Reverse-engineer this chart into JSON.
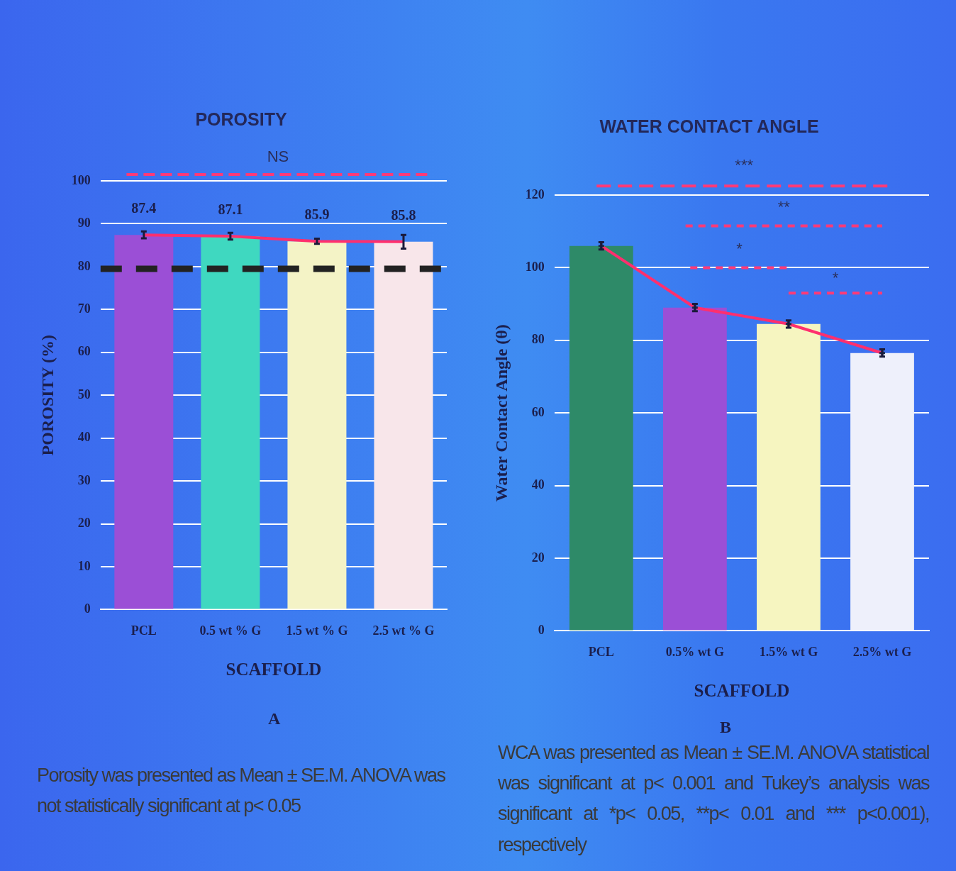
{
  "chart_data": [
    {
      "type": "bar",
      "title": "POROSITY",
      "xlabel": "SCAFFOLD",
      "ylabel": "POROSITY (%)",
      "categories": [
        "PCL",
        "0.5 wt % G",
        "1.5 wt % G",
        "2.5 wt % G"
      ],
      "series": [
        {
          "colors": [
            "#9b4fd6",
            "#3fd8c0",
            "#f4f3c6",
            "#f8e6ea"
          ],
          "values": [
            87.4,
            87.1,
            85.9,
            85.8
          ],
          "errors": [
            0.8,
            0.8,
            0.6,
            1.6
          ],
          "value_labels": [
            "87.4",
            "87.1",
            "85.9",
            "85.8"
          ]
        },
        {
          "type": "line",
          "color": "#ff2f6e",
          "values": [
            87.4,
            87.1,
            85.9,
            85.8
          ]
        }
      ],
      "ylim": [
        0,
        100
      ],
      "yticks": [
        0,
        10,
        20,
        30,
        40,
        50,
        60,
        70,
        80,
        90,
        100
      ],
      "grid": "y",
      "legend": false,
      "ref_lines": [
        {
          "axis": "y",
          "value": 79.5,
          "color": "#222222",
          "line_style": "dashed"
        }
      ],
      "annotations": [
        "NS",
        "A",
        "Porosity was presented as Mean ± SE.M. ANOVA was not statistically significant at p< 0.05"
      ]
    },
    {
      "type": "bar",
      "title": "WATER CONTACT ANGLE",
      "xlabel": "SCAFFOLD",
      "ylabel": "Water Contact Angle (θ)",
      "categories": [
        "PCL",
        "0.5% wt G",
        "1.5% wt G",
        "2.5% wt G"
      ],
      "series": [
        {
          "colors": [
            "#2e8a68",
            "#9b4fd6",
            "#f6f5c0",
            "#eef0fb"
          ],
          "values": [
            106,
            89,
            84.5,
            76.5
          ],
          "errors": [
            1,
            1,
            1,
            1
          ]
        },
        {
          "type": "line",
          "color": "#ff2f6e",
          "marker": "cross",
          "values": [
            106,
            89,
            84.5,
            76.5
          ]
        }
      ],
      "ylim": [
        0,
        120
      ],
      "yticks": [
        0,
        20,
        40,
        60,
        80,
        100,
        120
      ],
      "grid": "y",
      "legend": false,
      "annotations": [
        "***",
        "**",
        "*",
        "*",
        "B",
        "WCA was presented as Mean ± SE.M. ANOVA statistical was significant at p< 0.001 and Tukey’s analysis was significant at *p< 0.05, **p< 0.01 and *** p<0.001), respectively"
      ]
    }
  ]
}
